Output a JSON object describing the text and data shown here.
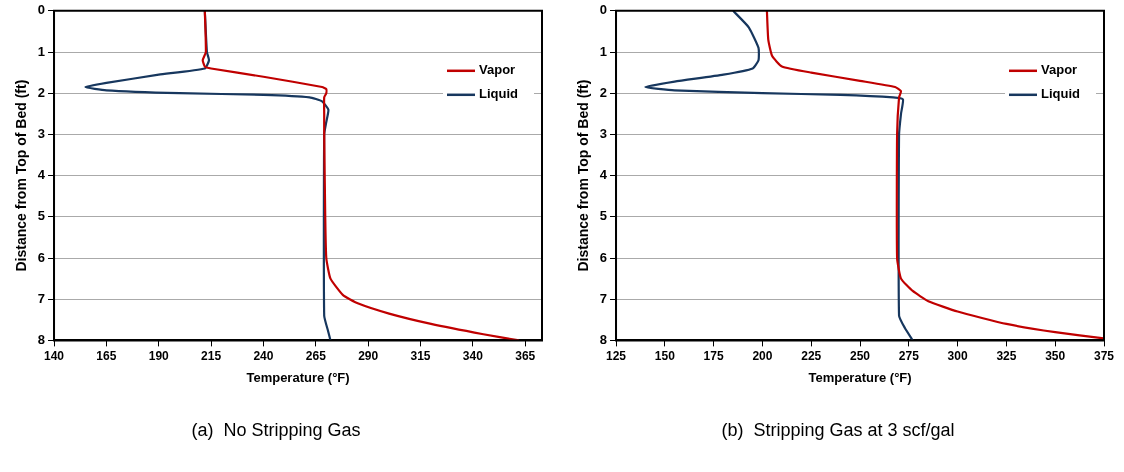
{
  "chart_data": [
    {
      "type": "line",
      "title": "(a)  No Stripping Gas",
      "xlabel": "Temperature (°F)",
      "ylabel": "Distance from Top of Bed (ft)",
      "xlim": [
        140,
        373
      ],
      "xticks": [
        140,
        165,
        190,
        215,
        240,
        265,
        290,
        315,
        340,
        365
      ],
      "ylim": [
        8,
        0
      ],
      "yticks": [
        0,
        1,
        2,
        3,
        4,
        5,
        6,
        7,
        8
      ],
      "grid": "y",
      "legend": "top right",
      "marker": "none",
      "line_style": "solid",
      "series": [
        {
          "name": "Vapor",
          "color": "#c00000",
          "x": [
            212,
            212.5,
            211,
            212,
            215,
            240,
            268,
            270,
            270,
            269,
            269,
            269,
            269.5,
            270,
            272,
            278,
            285,
            300,
            320,
            345,
            362
          ],
          "values": [
            0,
            1,
            1.2,
            1.35,
            1.4,
            1.6,
            1.85,
            1.9,
            2.0,
            2.1,
            2.5,
            3,
            5,
            6,
            6.5,
            6.9,
            7.1,
            7.35,
            7.6,
            7.85,
            8
          ]
        },
        {
          "name": "Liquid",
          "color": "#17375e",
          "x": [
            212,
            213,
            214,
            212,
            190,
            165,
            155,
            165,
            200,
            240,
            262,
            268,
            271,
            270,
            269,
            269,
            271,
            272
          ],
          "values": [
            0,
            1,
            1.2,
            1.4,
            1.55,
            1.75,
            1.85,
            1.93,
            2.0,
            2.04,
            2.1,
            2.2,
            2.4,
            2.7,
            3,
            7.4,
            7.8,
            8
          ]
        }
      ]
    },
    {
      "type": "line",
      "title": "(b)  Stripping Gas at 3 scf/gal",
      "xlabel": "Temperature (°F)",
      "ylabel": "Distance from Top of Bed (ft)",
      "xlim": [
        125,
        375
      ],
      "xticks": [
        125,
        150,
        175,
        200,
        225,
        250,
        275,
        300,
        325,
        350,
        375
      ],
      "ylim": [
        8,
        0
      ],
      "yticks": [
        0,
        1,
        2,
        3,
        4,
        5,
        6,
        7,
        8
      ],
      "grid": "y",
      "legend": "top right",
      "marker": "none",
      "line_style": "solid",
      "series": [
        {
          "name": "Vapor",
          "color": "#c00000",
          "x": [
            202.3,
            203,
            205,
            210,
            225,
            250,
            268,
            271,
            270,
            269,
            269,
            271,
            277,
            285,
            300,
            325,
            350,
            375
          ],
          "values": [
            0,
            0.7,
            1.1,
            1.35,
            1.5,
            1.7,
            1.85,
            1.95,
            2.1,
            3,
            6,
            6.5,
            6.8,
            7.05,
            7.3,
            7.6,
            7.8,
            7.95
          ]
        },
        {
          "name": "Liquid",
          "color": "#17375e",
          "x": [
            185,
            193,
            198,
            198,
            195,
            180,
            155,
            140,
            155,
            200,
            240,
            267,
            272,
            271,
            270,
            270,
            273,
            277
          ],
          "values": [
            0,
            0.4,
            0.9,
            1.2,
            1.4,
            1.55,
            1.72,
            1.85,
            1.93,
            2.0,
            2.04,
            2.1,
            2.15,
            2.5,
            3,
            7.4,
            7.7,
            8
          ]
        }
      ]
    }
  ]
}
